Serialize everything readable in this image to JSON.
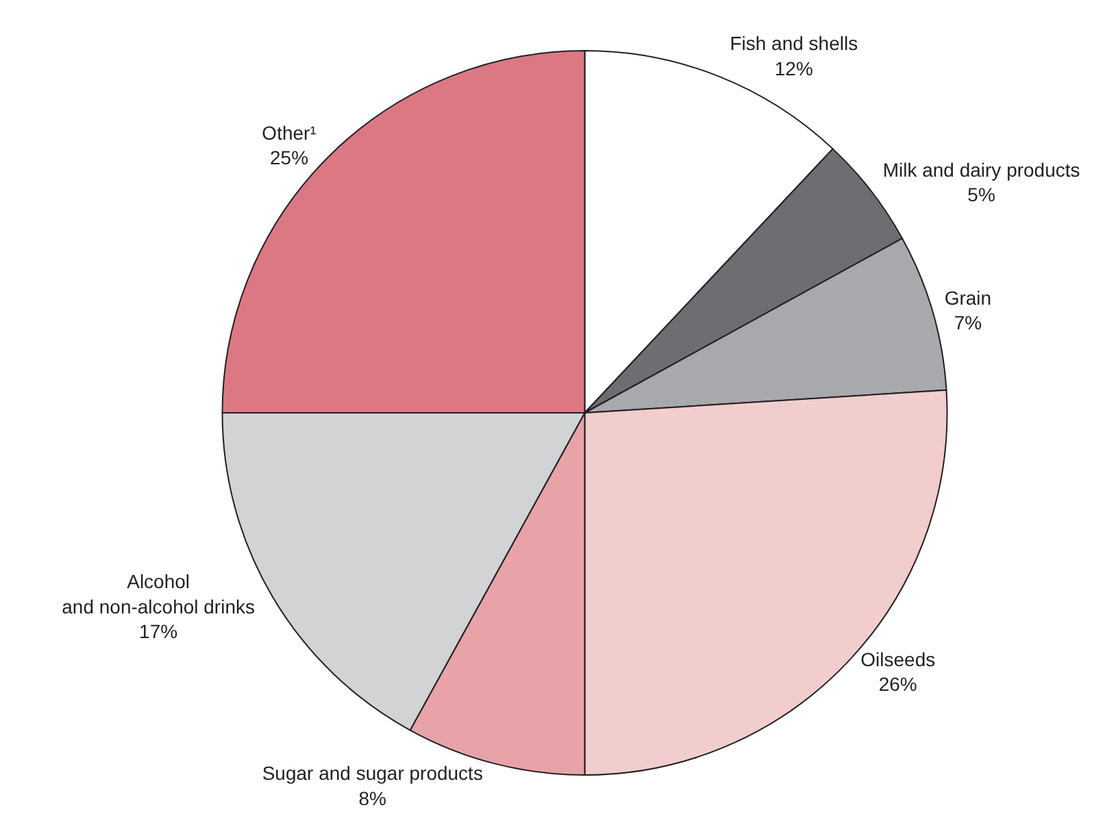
{
  "chart_data": {
    "type": "pie",
    "categories": [
      "Fish and shells",
      "Milk and dairy products",
      "Grain",
      "Oilseeds",
      "Sugar and sugar products",
      "Alcohol\nand non-alcohol drinks",
      "Other¹"
    ],
    "values": [
      12,
      5,
      7,
      26,
      8,
      17,
      25
    ],
    "value_labels": [
      "12%",
      "5%",
      "7%",
      "26%",
      "8%",
      "17%",
      "25%"
    ],
    "colors": [
      "#ffffff",
      "#6d6e71",
      "#a7a9ac",
      "#f2cdcd",
      "#e8a3a8",
      "#d1d3d4",
      "#db7884"
    ]
  }
}
